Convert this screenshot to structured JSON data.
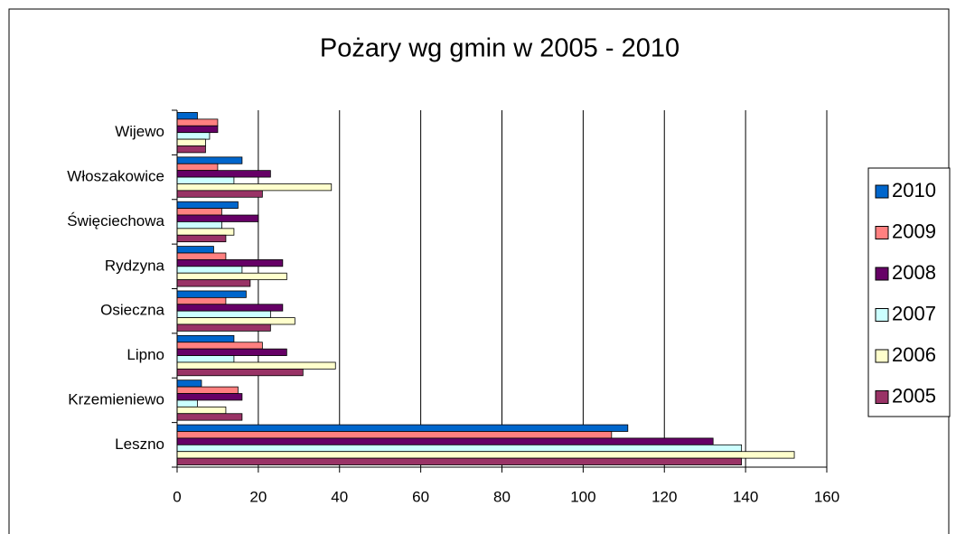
{
  "chart_data": {
    "type": "hbar",
    "title": "Pożary wg gmin w 2005 - 2010",
    "categories": [
      "Leszno",
      "Krzemieniewo",
      "Lipno",
      "Osieczna",
      "Rydzyna",
      "Święciechowa",
      "Włoszakowice",
      "Wijewo"
    ],
    "series": [
      {
        "name": "2010",
        "color": "#0066cc",
        "values": [
          111,
          6,
          14,
          17,
          9,
          15,
          16,
          5
        ]
      },
      {
        "name": "2009",
        "color": "#ff8080",
        "values": [
          107,
          15,
          21,
          12,
          12,
          11,
          10,
          10
        ]
      },
      {
        "name": "2008",
        "color": "#660066",
        "values": [
          132,
          16,
          27,
          26,
          26,
          20,
          23,
          10
        ]
      },
      {
        "name": "2007",
        "color": "#ccffff",
        "values": [
          139,
          5,
          14,
          23,
          16,
          11,
          14,
          8
        ]
      },
      {
        "name": "2006",
        "color": "#ffffcc",
        "values": [
          152,
          12,
          39,
          29,
          27,
          14,
          38,
          7
        ]
      },
      {
        "name": "2005",
        "color": "#993366",
        "values": [
          139,
          16,
          31,
          23,
          18,
          12,
          21,
          7
        ]
      }
    ],
    "xlim": [
      0,
      160
    ],
    "xticks": [
      0,
      20,
      40,
      60,
      80,
      100,
      120,
      140,
      160
    ],
    "grid": true,
    "legend": "right"
  }
}
